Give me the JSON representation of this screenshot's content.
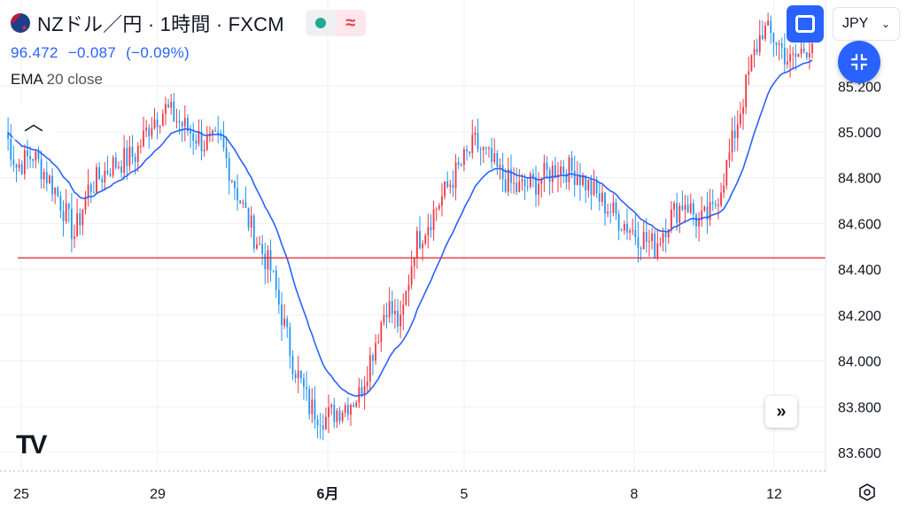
{
  "header": {
    "symbol_title": "NZドル／円 · 1時間 · FXCM",
    "price": "96.472",
    "change": "−0.087",
    "change_pct": "(−0.09%)",
    "indicator_name": "EMA",
    "indicator_params": "20 close",
    "status_icon": "green-dot-icon",
    "session_icon": "wave-icon"
  },
  "toolbar": {
    "currency": "JPY",
    "currency_chevron": "chevron-down-icon",
    "screenshot_icon": "fullscreen-frame-icon",
    "minimize_icon": "minimize-arrows-icon",
    "scroll_icon": "double-chevron-right-icon",
    "collapse_icon": "chevron-up-icon",
    "settings_icon": "gear-hex-icon"
  },
  "colors": {
    "up": "#f23645",
    "down": "#2196f3",
    "ema": "#2962ff",
    "hline": "#e0222f",
    "grid": "#eef0f3"
  },
  "chart_data": {
    "type": "candlestick",
    "y_ticks": [
      "85.200",
      "85.000",
      "84.800",
      "84.600",
      "84.400",
      "84.200",
      "84.000",
      "83.800",
      "83.600"
    ],
    "x_ticks": [
      "25",
      "29",
      "6月",
      "5",
      "8",
      "12"
    ],
    "ylim": [
      83.55,
      85.55
    ],
    "horizontal_line": 84.45,
    "grid": true,
    "anchors": [
      [
        0,
        85.0
      ],
      [
        4,
        84.85
      ],
      [
        10,
        84.9
      ],
      [
        18,
        84.75
      ],
      [
        25,
        84.55
      ],
      [
        30,
        84.75
      ],
      [
        38,
        84.85
      ],
      [
        47,
        84.9
      ],
      [
        53,
        85.05
      ],
      [
        58,
        85.1
      ],
      [
        65,
        85.02
      ],
      [
        72,
        84.95
      ],
      [
        78,
        84.95
      ],
      [
        85,
        84.7
      ],
      [
        90,
        84.55
      ],
      [
        96,
        84.4
      ],
      [
        100,
        84.2
      ],
      [
        104,
        84.0
      ],
      [
        110,
        83.8
      ],
      [
        116,
        83.75
      ],
      [
        122,
        83.8
      ],
      [
        128,
        83.85
      ],
      [
        133,
        84.05
      ],
      [
        138,
        84.25
      ],
      [
        143,
        84.15
      ],
      [
        148,
        84.5
      ],
      [
        155,
        84.65
      ],
      [
        162,
        84.8
      ],
      [
        170,
        84.95
      ],
      [
        175,
        84.88
      ],
      [
        180,
        84.8
      ],
      [
        185,
        84.75
      ],
      [
        192,
        84.78
      ],
      [
        200,
        84.85
      ],
      [
        207,
        84.82
      ],
      [
        214,
        84.72
      ],
      [
        222,
        84.62
      ],
      [
        229,
        84.55
      ],
      [
        235,
        84.5
      ],
      [
        240,
        84.62
      ],
      [
        246,
        84.7
      ],
      [
        251,
        84.6
      ],
      [
        256,
        84.65
      ],
      [
        261,
        84.85
      ],
      [
        265,
        85.05
      ],
      [
        270,
        85.3
      ],
      [
        274,
        85.45
      ],
      [
        279,
        85.4
      ],
      [
        284,
        85.3
      ],
      [
        292,
        85.4
      ]
    ]
  }
}
